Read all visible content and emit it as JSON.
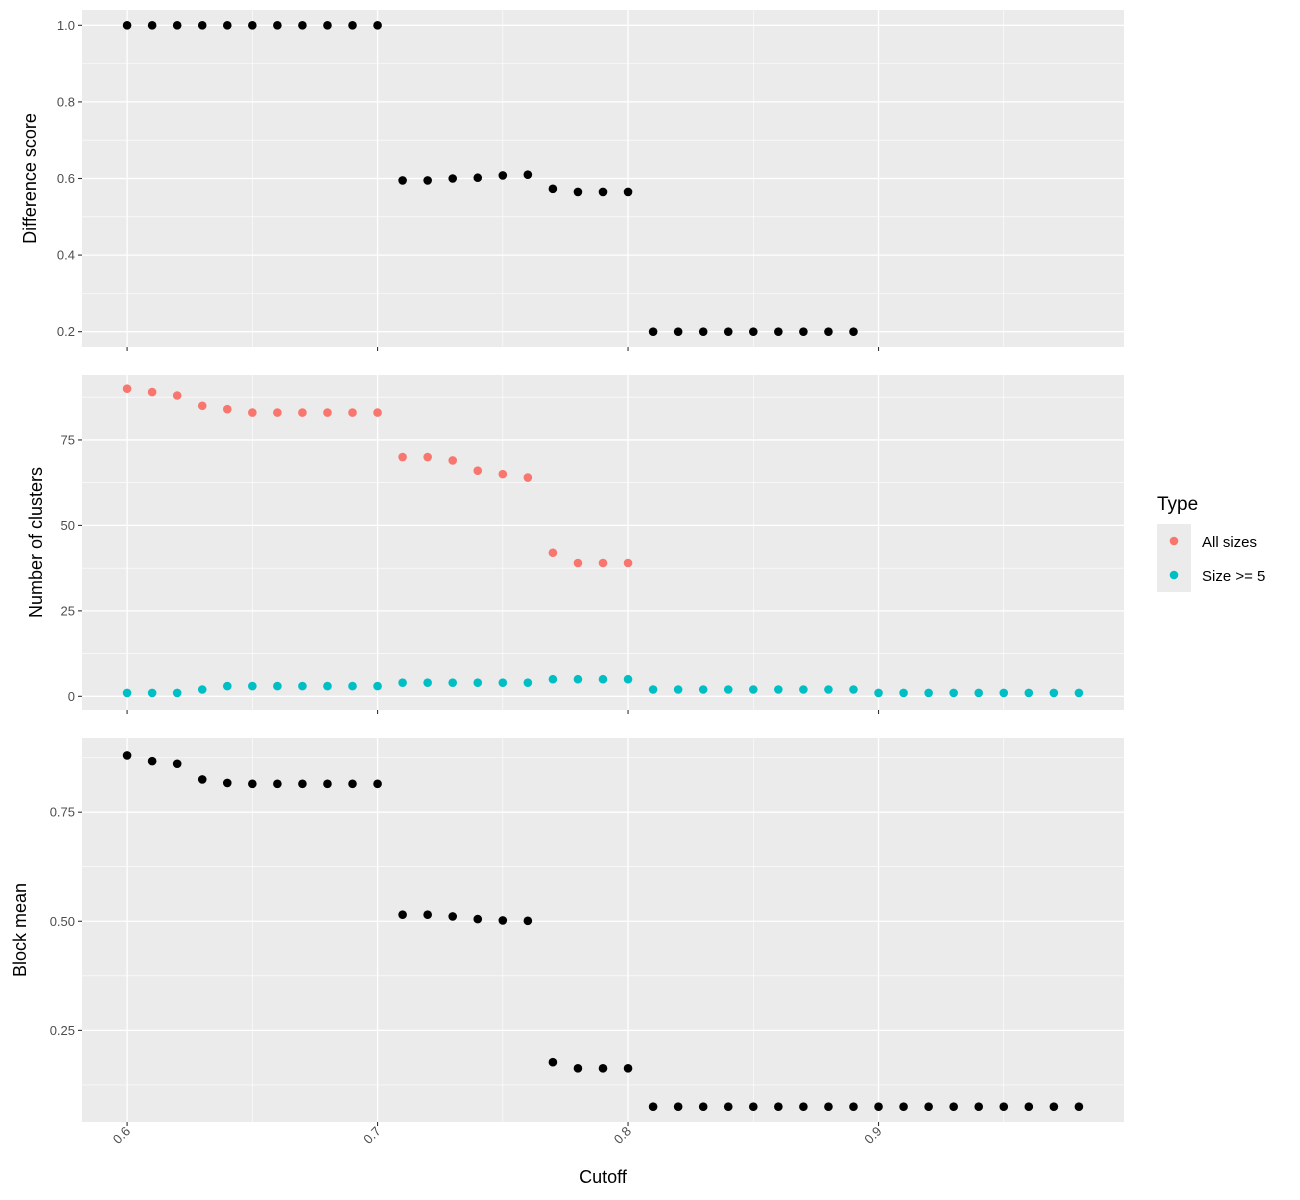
{
  "chart_data": {
    "type": "scatter",
    "xlabel": "Cutoff",
    "x_ticks": [
      0.6,
      0.7,
      0.8,
      0.9
    ],
    "x_tick_labels": [
      "0.6",
      "0.7",
      "0.8",
      "0.9"
    ],
    "xlim": [
      0.582,
      0.998
    ],
    "grid": true,
    "legend": {
      "title": "Type",
      "placement": "right",
      "entries": [
        {
          "label": "All sizes",
          "color": "#F8766D"
        },
        {
          "label": "Size >= 5",
          "color": "#00BFC4"
        }
      ]
    },
    "panels": [
      {
        "ylabel": "Difference score",
        "ylim": [
          0.16,
          1.04
        ],
        "y_ticks": [
          0.2,
          0.4,
          0.6,
          0.8,
          1.0
        ],
        "y_tick_labels": [
          "0.2",
          "0.4",
          "0.6",
          "0.8",
          "1.0"
        ],
        "series": [
          {
            "color": "#000000",
            "x": [
              0.6,
              0.61,
              0.62,
              0.63,
              0.64,
              0.65,
              0.66,
              0.67,
              0.68,
              0.69,
              0.7,
              0.71,
              0.72,
              0.73,
              0.74,
              0.75,
              0.76,
              0.77,
              0.78,
              0.79,
              0.8,
              0.81,
              0.82,
              0.83,
              0.84,
              0.85,
              0.86,
              0.87,
              0.88,
              0.89
            ],
            "y": [
              1.0,
              1.0,
              1.0,
              1.0,
              1.0,
              1.0,
              1.0,
              1.0,
              1.0,
              1.0,
              1.0,
              0.595,
              0.595,
              0.6,
              0.602,
              0.608,
              0.61,
              0.573,
              0.565,
              0.565,
              0.565,
              0.2,
              0.2,
              0.2,
              0.2,
              0.2,
              0.2,
              0.2,
              0.2,
              0.2
            ]
          }
        ]
      },
      {
        "ylabel": "Number of clusters",
        "ylim": [
          -4,
          94
        ],
        "y_ticks": [
          0,
          25,
          50,
          75
        ],
        "y_tick_labels": [
          "0",
          "25",
          "50",
          "75"
        ],
        "series": [
          {
            "name": "All sizes",
            "color": "#F8766D",
            "x": [
              0.6,
              0.61,
              0.62,
              0.63,
              0.64,
              0.65,
              0.66,
              0.67,
              0.68,
              0.69,
              0.7,
              0.71,
              0.72,
              0.73,
              0.74,
              0.75,
              0.76,
              0.77,
              0.78,
              0.79,
              0.8
            ],
            "y": [
              90,
              89,
              88,
              85,
              84,
              83,
              83,
              83,
              83,
              83,
              83,
              70,
              70,
              69,
              66,
              65,
              64,
              42,
              39,
              39,
              39
            ]
          },
          {
            "name": "Size >= 5",
            "color": "#00BFC4",
            "x": [
              0.6,
              0.61,
              0.62,
              0.63,
              0.64,
              0.65,
              0.66,
              0.67,
              0.68,
              0.69,
              0.7,
              0.71,
              0.72,
              0.73,
              0.74,
              0.75,
              0.76,
              0.77,
              0.78,
              0.79,
              0.8,
              0.81,
              0.82,
              0.83,
              0.84,
              0.85,
              0.86,
              0.87,
              0.88,
              0.89,
              0.9,
              0.91,
              0.92,
              0.93,
              0.94,
              0.95,
              0.96,
              0.97,
              0.98
            ],
            "y": [
              1,
              1,
              1,
              2,
              3,
              3,
              3,
              3,
              3,
              3,
              3,
              4,
              4,
              4,
              4,
              4,
              4,
              5,
              5,
              5,
              5,
              2,
              2,
              2,
              2,
              2,
              2,
              2,
              2,
              2,
              1,
              1,
              1,
              1,
              1,
              1,
              1,
              1,
              1
            ]
          }
        ]
      },
      {
        "ylabel": "Block mean",
        "ylim": [
          0.04,
          0.92
        ],
        "y_ticks": [
          0.25,
          0.5,
          0.75
        ],
        "y_tick_labels": [
          "0.25",
          "0.50",
          "0.75"
        ],
        "series": [
          {
            "color": "#000000",
            "x": [
              0.6,
              0.61,
              0.62,
              0.63,
              0.64,
              0.65,
              0.66,
              0.67,
              0.68,
              0.69,
              0.7,
              0.71,
              0.72,
              0.73,
              0.74,
              0.75,
              0.76,
              0.77,
              0.78,
              0.79,
              0.8,
              0.81,
              0.82,
              0.83,
              0.84,
              0.85,
              0.86,
              0.87,
              0.88,
              0.89,
              0.9,
              0.91,
              0.92,
              0.93,
              0.94,
              0.95,
              0.96,
              0.97,
              0.98
            ],
            "y": [
              0.88,
              0.867,
              0.861,
              0.825,
              0.817,
              0.815,
              0.815,
              0.815,
              0.815,
              0.815,
              0.815,
              0.515,
              0.515,
              0.511,
              0.505,
              0.502,
              0.501,
              0.177,
              0.163,
              0.163,
              0.163,
              0.075,
              0.075,
              0.075,
              0.075,
              0.075,
              0.075,
              0.075,
              0.075,
              0.075,
              0.075,
              0.075,
              0.075,
              0.075,
              0.075,
              0.075,
              0.075,
              0.075,
              0.075
            ]
          }
        ]
      }
    ]
  }
}
